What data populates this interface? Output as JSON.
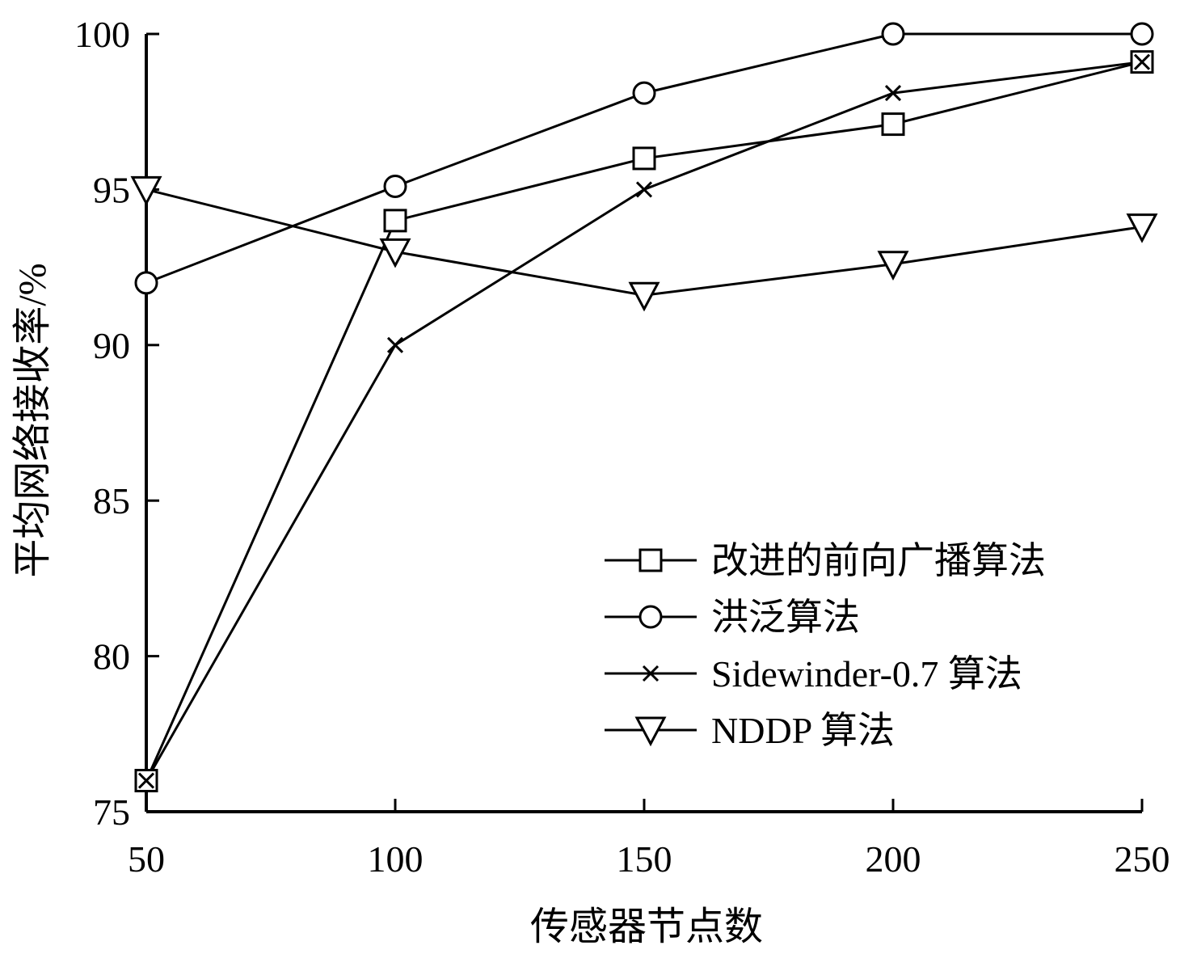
{
  "chart_data": {
    "type": "line",
    "title": "",
    "xlabel": "传感器节点数",
    "ylabel": "平均网络接收率/%",
    "x": [
      50,
      100,
      150,
      200,
      250
    ],
    "xticks": [
      "50",
      "100",
      "150",
      "200",
      "250"
    ],
    "yticks": [
      "75",
      "80",
      "85",
      "90",
      "95",
      "100"
    ],
    "xlim": [
      50,
      250
    ],
    "ylim": [
      75,
      100
    ],
    "grid": false,
    "legend_position": "bottom-right",
    "series": [
      {
        "name": "改进的前向广播算法",
        "marker": "square",
        "values": [
          76,
          94,
          96,
          97.1,
          99.1
        ]
      },
      {
        "name": "洪泛算法",
        "marker": "circle",
        "values": [
          92,
          95.1,
          98.1,
          100,
          100
        ]
      },
      {
        "name": "Sidewinder-0.7 算法",
        "marker": "x",
        "values": [
          76,
          90,
          95,
          98.1,
          99.1
        ]
      },
      {
        "name": "NDDP 算法",
        "marker": "triangle-down",
        "values": [
          95,
          93,
          91.6,
          92.6,
          93.8
        ]
      }
    ],
    "line_color": "#000000"
  }
}
